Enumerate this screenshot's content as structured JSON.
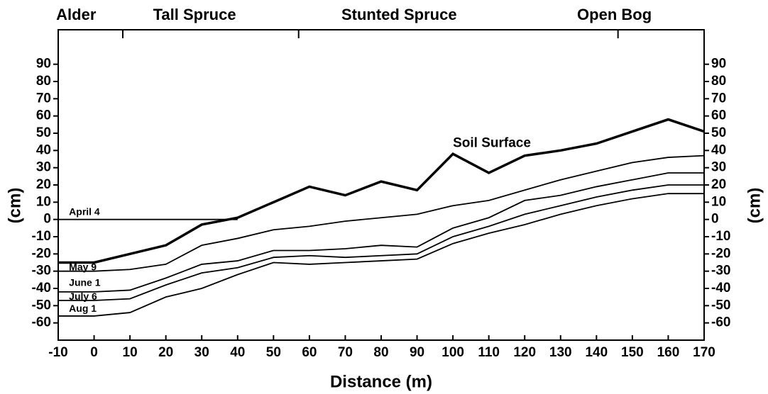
{
  "chart_data": {
    "type": "line",
    "x_label": "Distance (m)",
    "y_label": "(cm)",
    "y2_label": "(cm)",
    "annotations": [
      "Alder",
      "Tall Spruce",
      "Stunted Spruce",
      "Open Bog"
    ],
    "x": [
      -10,
      0,
      10,
      20,
      30,
      40,
      50,
      60,
      70,
      80,
      90,
      100,
      110,
      120,
      130,
      140,
      150,
      160,
      170
    ],
    "series": [
      {
        "name": "Soil Surface",
        "color": "#000000",
        "values": [
          -25,
          -25,
          -20,
          -15,
          -3,
          1,
          10,
          19,
          14,
          22,
          17,
          38,
          27,
          37,
          40,
          44,
          51,
          58,
          51
        ]
      },
      {
        "name": "April 4",
        "color": "#000000",
        "values": [
          0,
          0,
          0,
          0,
          0,
          0,
          null,
          null,
          null,
          null,
          null,
          null,
          null,
          null,
          null,
          null,
          null,
          null,
          null
        ]
      },
      {
        "name": "May 9",
        "color": "#000000",
        "values": [
          -30,
          -30,
          -29,
          -26,
          -15,
          -11,
          -6,
          -4,
          -1,
          1,
          3,
          8,
          11,
          17,
          23,
          28,
          33,
          36,
          37
        ]
      },
      {
        "name": "June 1",
        "color": "#000000",
        "values": [
          -42,
          -42,
          -41,
          -34,
          -26,
          -24,
          -18,
          -18,
          -17,
          -15,
          -16,
          -5,
          1,
          11,
          14,
          19,
          23,
          27,
          27
        ]
      },
      {
        "name": "July 6",
        "color": "#000000",
        "values": [
          -47,
          -47,
          -46,
          -38,
          -31,
          -28,
          -22,
          -21,
          -22,
          -21,
          -20,
          -10,
          -4,
          3,
          8,
          13,
          17,
          20,
          20
        ]
      },
      {
        "name": "Aug 1",
        "color": "#000000",
        "values": [
          -56,
          -56,
          -54,
          -45,
          -40,
          -32,
          -25,
          -26,
          -25,
          -24,
          -23,
          -14,
          -8,
          -3,
          3,
          8,
          12,
          15,
          15
        ]
      }
    ],
    "xlim": [
      -10,
      170
    ],
    "xticks": [
      -10,
      0,
      10,
      20,
      30,
      40,
      50,
      60,
      70,
      80,
      90,
      100,
      110,
      120,
      130,
      140,
      150,
      160,
      170
    ],
    "ylim": [
      -70,
      110
    ],
    "yticks": [
      -60,
      -50,
      -40,
      -30,
      -20,
      -10,
      0,
      10,
      20,
      30,
      40,
      50,
      60,
      70,
      80,
      90
    ]
  }
}
